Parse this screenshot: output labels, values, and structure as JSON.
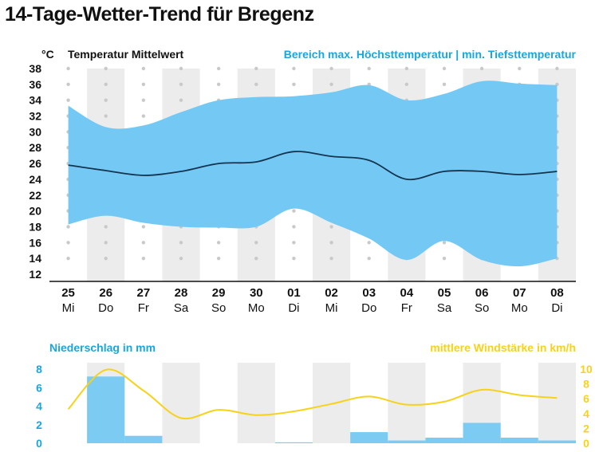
{
  "page": {
    "title": "14-Tage-Wetter-Trend für Bregenz"
  },
  "colors": {
    "band": "#74c9f4",
    "mean_line": "#14344f",
    "precip": "#7ccbf3",
    "wind": "#f7d21a",
    "stripe": "#ececec",
    "accent_text": "#1aa6dc"
  },
  "chart_data": [
    {
      "type": "area",
      "unit_label": "°C",
      "legend_mean": "Temperatur Mittelwert",
      "legend_range": "Bereich max. Höchsttemperatur | min. Tiefsttemperatur",
      "ylim": [
        12,
        38
      ],
      "yticks": [
        12,
        14,
        16,
        18,
        20,
        22,
        24,
        26,
        28,
        30,
        32,
        34,
        36,
        38
      ],
      "grid": "alternating-column-stripes",
      "days": [
        {
          "num": "25",
          "wd": "Mi"
        },
        {
          "num": "26",
          "wd": "Do"
        },
        {
          "num": "27",
          "wd": "Fr"
        },
        {
          "num": "28",
          "wd": "Sa"
        },
        {
          "num": "29",
          "wd": "So"
        },
        {
          "num": "30",
          "wd": "Mo"
        },
        {
          "num": "01",
          "wd": "Di"
        },
        {
          "num": "02",
          "wd": "Mi"
        },
        {
          "num": "03",
          "wd": "Do"
        },
        {
          "num": "04",
          "wd": "Fr"
        },
        {
          "num": "05",
          "wd": "Sa"
        },
        {
          "num": "06",
          "wd": "So"
        },
        {
          "num": "07",
          "wd": "Mo"
        },
        {
          "num": "08",
          "wd": "Di"
        }
      ],
      "series": [
        {
          "name": "Höchsttemperatur",
          "values": [
            33.3,
            30.6,
            30.8,
            32.5,
            34.0,
            34.4,
            34.5,
            35.0,
            35.9,
            34.0,
            34.8,
            36.4,
            36.1,
            35.9
          ]
        },
        {
          "name": "Tiefsttemperatur",
          "values": [
            18.3,
            19.4,
            18.5,
            18.0,
            17.9,
            18.0,
            20.3,
            18.5,
            16.5,
            13.8,
            16.2,
            13.8,
            13.0,
            14.0
          ]
        },
        {
          "name": "Temperatur Mittelwert",
          "values": [
            25.8,
            25.1,
            24.5,
            25.0,
            26.0,
            26.2,
            27.5,
            26.9,
            26.4,
            24.0,
            25.0,
            25.0,
            24.6,
            25.0
          ]
        }
      ]
    },
    {
      "type": "bar",
      "left_title": "Niederschlag in mm",
      "right_title": "mittlere Windstärke in km/h",
      "ylim_left": [
        0,
        8
      ],
      "yticks_left": [
        0,
        2,
        4,
        6,
        8
      ],
      "ylim_right": [
        0,
        10
      ],
      "yticks_right": [
        0,
        2,
        4,
        6,
        8,
        10
      ],
      "precip_mm": [
        0,
        7.2,
        0.8,
        0,
        0,
        0,
        0.1,
        0,
        1.2,
        0.3,
        0.6,
        2.2,
        0.6,
        0.3
      ],
      "wind_kmh": [
        4.6,
        9.9,
        7.1,
        3.4,
        4.5,
        3.8,
        4.3,
        5.3,
        6.3,
        5.2,
        5.6,
        7.2,
        6.5,
        6.1
      ]
    }
  ]
}
